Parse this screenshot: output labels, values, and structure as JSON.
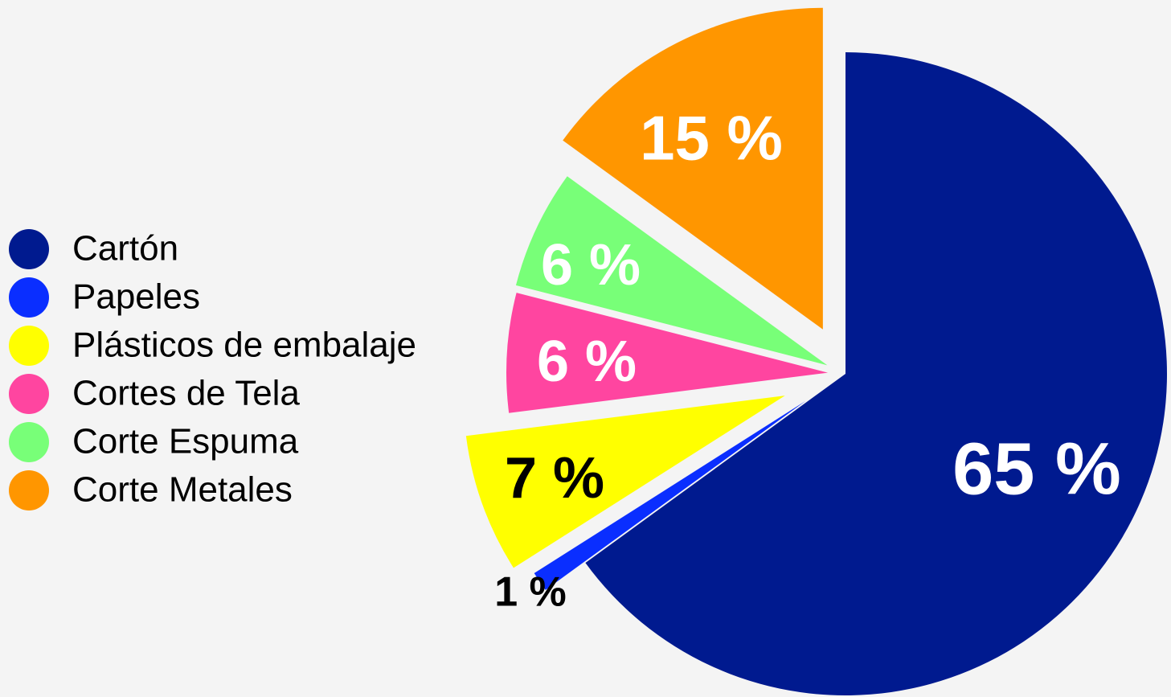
{
  "chart_data": {
    "type": "pie",
    "categories": [
      "Cartón",
      "Papeles",
      "Plásticos de embalaje",
      "Cortes de Tela",
      "Corte Espuma",
      "Corte Metales"
    ],
    "values": [
      65,
      1,
      7,
      6,
      6,
      15
    ],
    "value_labels": [
      "65 %",
      "1 %",
      "7 %",
      "6 %",
      "6 %",
      "15 %"
    ],
    "colors": [
      "#001a8f",
      "#0a2eff",
      "#ffff00",
      "#ff45a0",
      "#78ff78",
      "#ff9600"
    ],
    "legend": "left"
  }
}
